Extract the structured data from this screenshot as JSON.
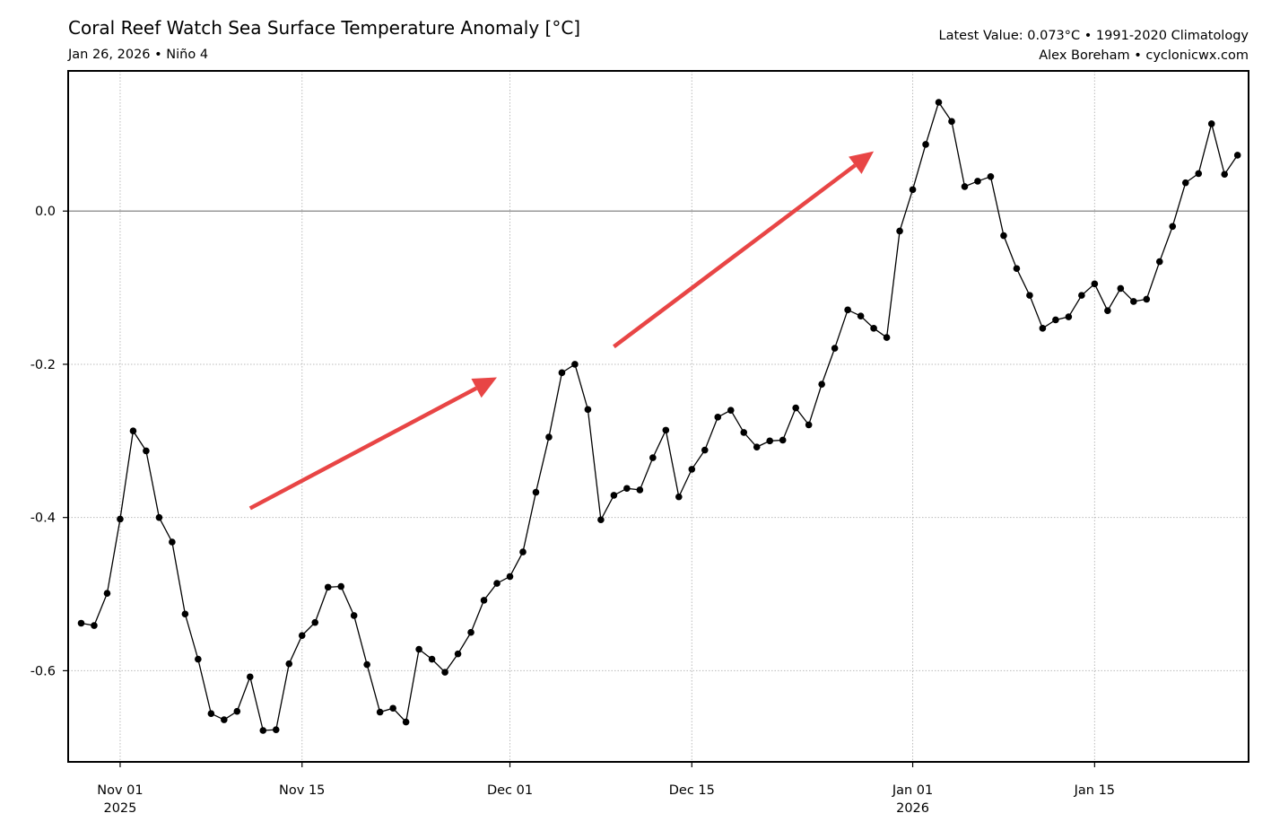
{
  "chart_data": {
    "type": "line",
    "title": "Coral Reef Watch Sea Surface Temperature Anomaly [°C]",
    "subtitle": "Jan 26, 2026 • Niño 4",
    "info_line1": "Latest Value: 0.073°C • 1991-2020 Climatology",
    "info_line2": "Alex Boreham • cyclonicwx.com",
    "xlabel": "",
    "ylabel": "",
    "start_date": "2025-10-29",
    "xlim": [
      "2025-10-28",
      "2026-01-26"
    ],
    "ylim": [
      -0.719,
      0.183
    ],
    "grid": true,
    "line_color": "#000000",
    "zero_line_color": "#999999",
    "arrow_color": "#e84545",
    "x_ticks": [
      {
        "date": "2025-11-01",
        "label": "Nov 01",
        "sublabel": "2025"
      },
      {
        "date": "2025-11-15",
        "label": "Nov 15",
        "sublabel": ""
      },
      {
        "date": "2025-12-01",
        "label": "Dec 01",
        "sublabel": ""
      },
      {
        "date": "2025-12-15",
        "label": "Dec 15",
        "sublabel": ""
      },
      {
        "date": "2026-01-01",
        "label": "Jan 01",
        "sublabel": "2026"
      },
      {
        "date": "2026-01-15",
        "label": "Jan 15",
        "sublabel": ""
      }
    ],
    "y_ticks": [
      {
        "value": 0.0,
        "label": "0.0"
      },
      {
        "value": -0.2,
        "label": "-0.2"
      },
      {
        "value": -0.4,
        "label": "-0.4"
      },
      {
        "value": -0.6,
        "label": "-0.6"
      }
    ],
    "values": [
      -0.538,
      -0.541,
      -0.499,
      -0.402,
      -0.287,
      -0.313,
      -0.4,
      -0.432,
      -0.526,
      -0.585,
      -0.656,
      -0.664,
      -0.653,
      -0.608,
      -0.678,
      -0.677,
      -0.591,
      -0.554,
      -0.537,
      -0.491,
      -0.49,
      -0.528,
      -0.592,
      -0.654,
      -0.649,
      -0.667,
      -0.572,
      -0.585,
      -0.602,
      -0.578,
      -0.55,
      -0.508,
      -0.486,
      -0.477,
      -0.445,
      -0.367,
      -0.295,
      -0.211,
      -0.2,
      -0.259,
      -0.403,
      -0.371,
      -0.362,
      -0.364,
      -0.322,
      -0.286,
      -0.373,
      -0.337,
      -0.312,
      -0.269,
      -0.26,
      -0.289,
      -0.308,
      -0.3,
      -0.299,
      -0.257,
      -0.279,
      -0.226,
      -0.179,
      -0.129,
      -0.137,
      -0.153,
      -0.165,
      -0.026,
      0.028,
      0.087,
      0.142,
      0.117,
      0.032,
      0.039,
      0.045,
      -0.032,
      -0.075,
      -0.11,
      -0.153,
      -0.142,
      -0.138,
      -0.11,
      -0.095,
      -0.13,
      -0.101,
      -0.118,
      -0.115,
      -0.066,
      -0.02,
      0.037,
      0.049,
      0.114,
      0.048,
      0.073
    ],
    "annotations": [
      {
        "type": "arrow",
        "from": {
          "date": "2025-11-11",
          "value": -0.388
        },
        "to": {
          "date": "2025-11-30",
          "value": -0.217
        }
      },
      {
        "type": "arrow",
        "from": {
          "date": "2025-12-09",
          "value": -0.177
        },
        "to": {
          "date": "2025-12-29",
          "value": 0.078
        }
      }
    ]
  }
}
